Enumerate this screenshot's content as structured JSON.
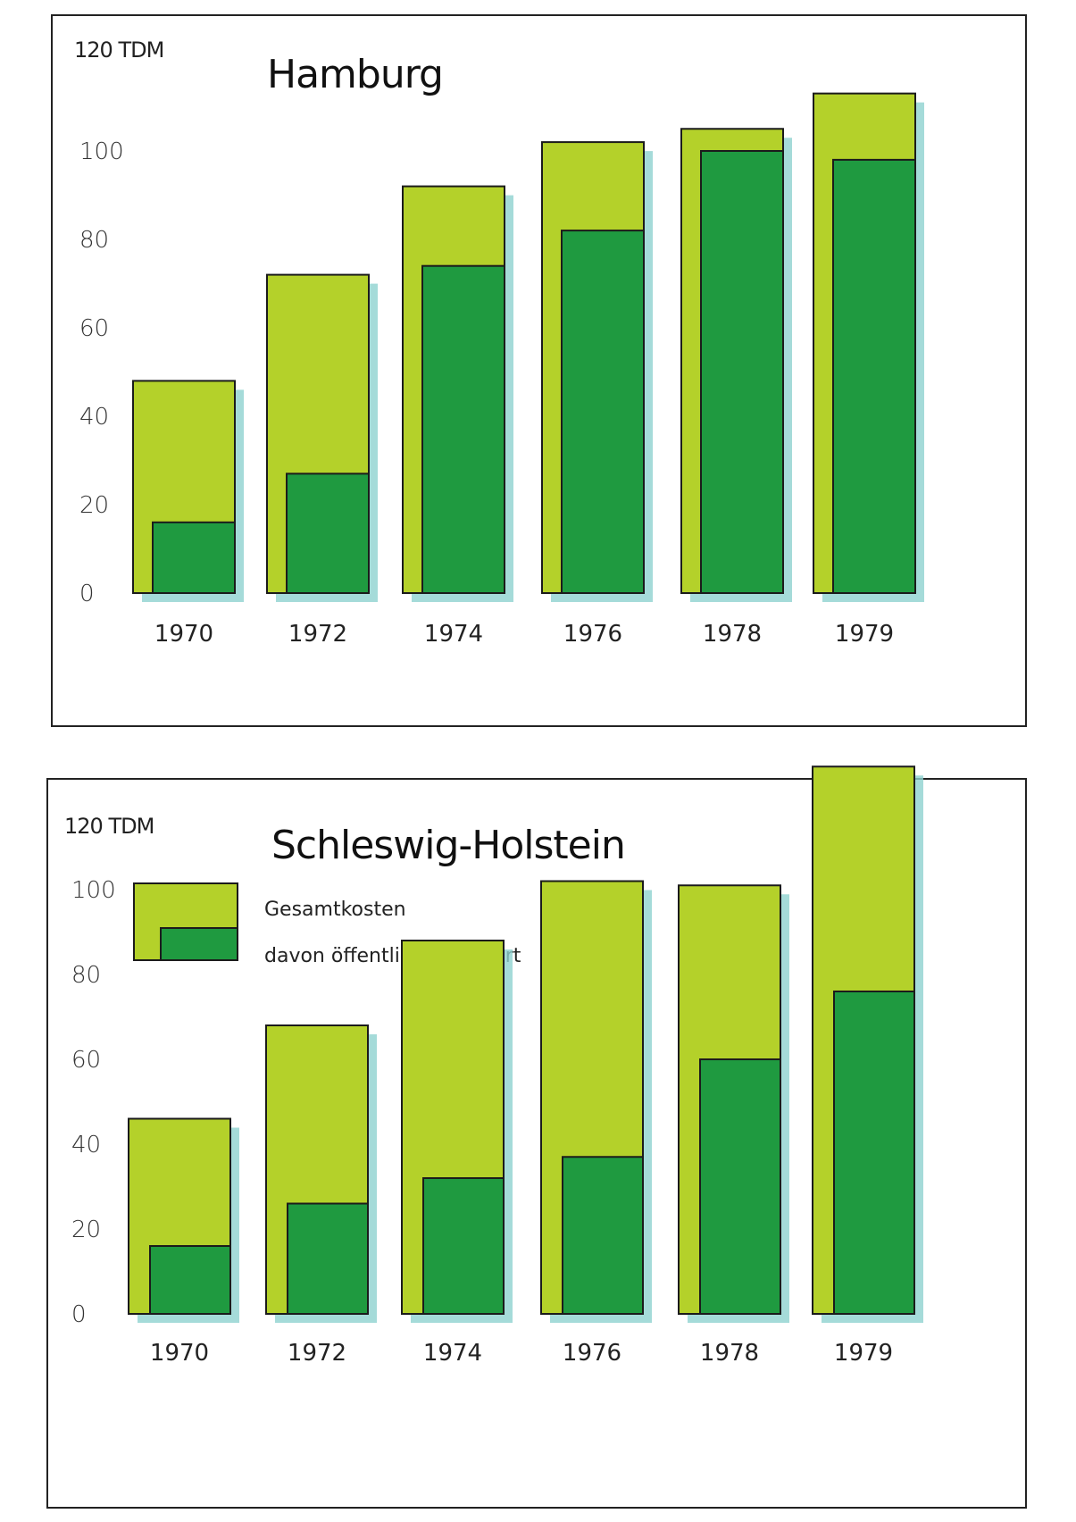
{
  "colors": {
    "total": "#b4d12a",
    "total_light": "#c9dc2e",
    "subsidized": "#1f9a40",
    "shadow": "#8fd2d0",
    "outline": "#1b1b1b"
  },
  "legend": {
    "total_label": "Gesamtkosten",
    "subsidized_label": "davon öffentlich gefördert"
  },
  "chart_data": [
    {
      "type": "bar",
      "title": "Hamburg",
      "unit_label": "120 TDM",
      "ylim": [
        0,
        120
      ],
      "yticks": [
        "0",
        "20",
        "40",
        "60",
        "80",
        "100"
      ],
      "categories": [
        "1970",
        "1972",
        "1974",
        "1976",
        "1978",
        "1979"
      ],
      "series": [
        {
          "name": "Gesamtkosten",
          "values": [
            48,
            72,
            92,
            102,
            105,
            113
          ]
        },
        {
          "name": "davon öffentlich gefördert",
          "values": [
            16,
            27,
            74,
            82,
            100,
            98
          ]
        }
      ]
    },
    {
      "type": "bar",
      "title": "Schleswig-Holstein",
      "unit_label": "120 TDM",
      "ylim": [
        0,
        120
      ],
      "yticks": [
        "0",
        "20",
        "40",
        "60",
        "80",
        "100"
      ],
      "categories": [
        "1970",
        "1972",
        "1974",
        "1976",
        "1978",
        "1979"
      ],
      "series": [
        {
          "name": "Gesamtkosten",
          "values": [
            46,
            68,
            88,
            102,
            101,
            129
          ]
        },
        {
          "name": "davon öffentlich gefördert",
          "values": [
            16,
            26,
            32,
            37,
            60,
            76
          ]
        }
      ]
    }
  ]
}
